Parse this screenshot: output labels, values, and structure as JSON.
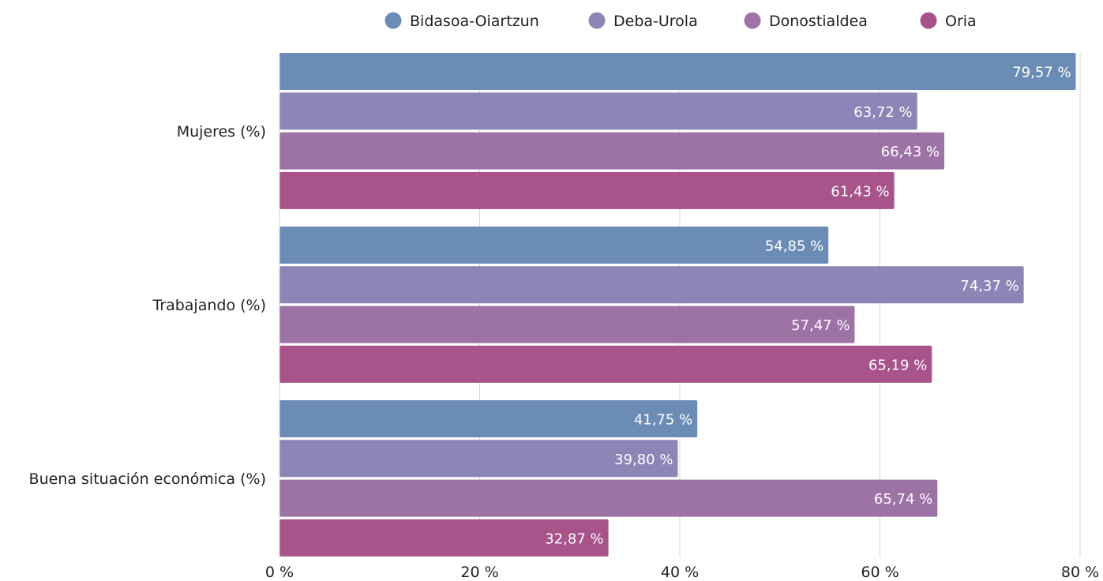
{
  "chart_data": {
    "type": "bar",
    "orientation": "horizontal",
    "title": "",
    "xlabel": "",
    "ylabel": "",
    "categories": [
      "Mujeres (%)",
      "Trabajando (%)",
      "Buena situación económica (%)"
    ],
    "series": [
      {
        "name": "Bidasoa-Oiartzun",
        "color": "#6b8db5",
        "values": [
          79.57,
          54.85,
          41.75
        ],
        "labels": [
          "79,57 %",
          "54,85 %",
          "41,75 %"
        ]
      },
      {
        "name": "Deba-Urola",
        "color": "#8b86b5",
        "values": [
          63.72,
          74.37,
          39.8
        ],
        "labels": [
          "63,72 %",
          "74,37 %",
          "39,80 %"
        ]
      },
      {
        "name": "Donostialdea",
        "color": "#9d72a5",
        "values": [
          66.43,
          57.47,
          65.74
        ],
        "labels": [
          "66,43 %",
          "57,47 %",
          "65,74 %"
        ]
      },
      {
        "name": "Oria",
        "color": "#a8538a",
        "values": [
          61.43,
          65.19,
          32.87
        ],
        "labels": [
          "61,43 %",
          "65,19 %",
          "32,87 %"
        ]
      }
    ],
    "xlim": [
      0,
      80
    ],
    "xticks": [
      0,
      20,
      40,
      60,
      80
    ],
    "xtick_labels": [
      "0 %",
      "20 %",
      "40 %",
      "60 %",
      "80 %"
    ],
    "grid": true,
    "legend_position": "top"
  }
}
